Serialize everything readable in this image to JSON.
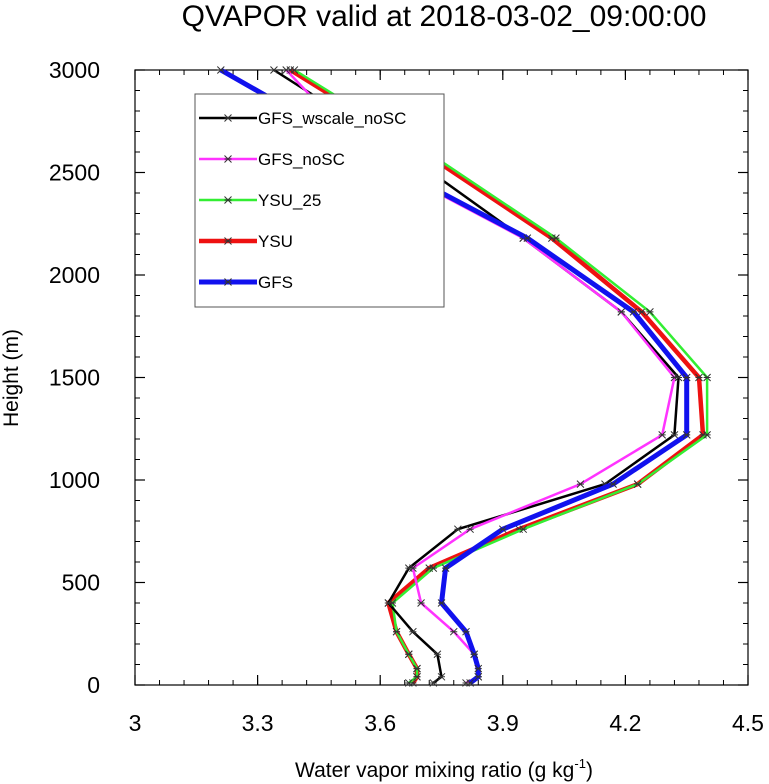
{
  "chart_data": {
    "type": "line",
    "title": "QVAPOR valid at 2018-03-02_09:00:00",
    "xlabel": "Water vapor mixing ratio (g kg",
    "xlabel_exp": "-1",
    "xlabel_close": ")",
    "ylabel": "Height (m)",
    "xlim": [
      3,
      4.5
    ],
    "ylim": [
      0,
      3000
    ],
    "xticks": [
      3,
      3.3,
      3.6,
      3.9,
      4.2,
      4.5
    ],
    "xtick_labels": [
      "3",
      "3.3",
      "3.6",
      "3.9",
      "4.2",
      "4.5"
    ],
    "yticks": [
      0,
      500,
      1000,
      1500,
      2000,
      2500,
      3000
    ],
    "ytick_labels": [
      "0",
      "500",
      "1000",
      "1500",
      "2000",
      "2500",
      "3000"
    ],
    "legend_position": "top-left",
    "series": [
      {
        "name": "GFS_wscale_noSC",
        "color": "#000000",
        "width": 2.5,
        "marker": true,
        "points": [
          [
            3.73,
            10
          ],
          [
            3.75,
            40
          ],
          [
            3.74,
            150
          ],
          [
            3.68,
            260
          ],
          [
            3.62,
            400
          ],
          [
            3.67,
            570
          ],
          [
            3.79,
            760
          ],
          [
            4.15,
            980
          ],
          [
            4.32,
            1220
          ],
          [
            4.33,
            1500
          ],
          [
            4.19,
            1820
          ],
          [
            3.95,
            2180
          ],
          [
            3.67,
            2580
          ],
          [
            3.34,
            3000
          ]
        ]
      },
      {
        "name": "GFS_noSC",
        "color": "#ff33ff",
        "width": 2.5,
        "marker": true,
        "points": [
          [
            3.81,
            10
          ],
          [
            3.84,
            40
          ],
          [
            3.83,
            150
          ],
          [
            3.78,
            260
          ],
          [
            3.7,
            400
          ],
          [
            3.68,
            570
          ],
          [
            3.82,
            760
          ],
          [
            4.09,
            980
          ],
          [
            4.29,
            1220
          ],
          [
            4.32,
            1500
          ],
          [
            4.19,
            1820
          ],
          [
            3.95,
            2180
          ],
          [
            3.57,
            2580
          ],
          [
            3.37,
            3000
          ]
        ]
      },
      {
        "name": "YSU_25",
        "color": "#33ee33",
        "width": 2.5,
        "marker": true,
        "points": [
          [
            3.67,
            10
          ],
          [
            3.69,
            40
          ],
          [
            3.69,
            80
          ],
          [
            3.67,
            150
          ],
          [
            3.64,
            260
          ],
          [
            3.63,
            400
          ],
          [
            3.73,
            570
          ],
          [
            3.95,
            760
          ],
          [
            4.23,
            980
          ],
          [
            4.4,
            1220
          ],
          [
            4.4,
            1500
          ],
          [
            4.26,
            1820
          ],
          [
            4.03,
            2180
          ],
          [
            3.73,
            2580
          ],
          [
            3.39,
            3000
          ]
        ]
      },
      {
        "name": "YSU",
        "color": "#ee1111",
        "width": 4.5,
        "marker": true,
        "points": [
          [
            3.68,
            10
          ],
          [
            3.69,
            40
          ],
          [
            3.69,
            80
          ],
          [
            3.67,
            150
          ],
          [
            3.64,
            260
          ],
          [
            3.62,
            400
          ],
          [
            3.72,
            570
          ],
          [
            3.94,
            760
          ],
          [
            4.23,
            980
          ],
          [
            4.39,
            1220
          ],
          [
            4.38,
            1500
          ],
          [
            4.24,
            1820
          ],
          [
            4.02,
            2180
          ],
          [
            3.72,
            2580
          ],
          [
            3.38,
            3000
          ]
        ]
      },
      {
        "name": "GFS",
        "color": "#1111ee",
        "width": 5,
        "marker": true,
        "points": [
          [
            3.82,
            10
          ],
          [
            3.84,
            40
          ],
          [
            3.84,
            80
          ],
          [
            3.83,
            150
          ],
          [
            3.81,
            260
          ],
          [
            3.75,
            400
          ],
          [
            3.76,
            570
          ],
          [
            3.9,
            760
          ],
          [
            4.17,
            980
          ],
          [
            4.35,
            1220
          ],
          [
            4.35,
            1500
          ],
          [
            4.22,
            1820
          ],
          [
            3.96,
            2180
          ],
          [
            3.58,
            2580
          ],
          [
            3.21,
            3000
          ]
        ]
      }
    ]
  }
}
